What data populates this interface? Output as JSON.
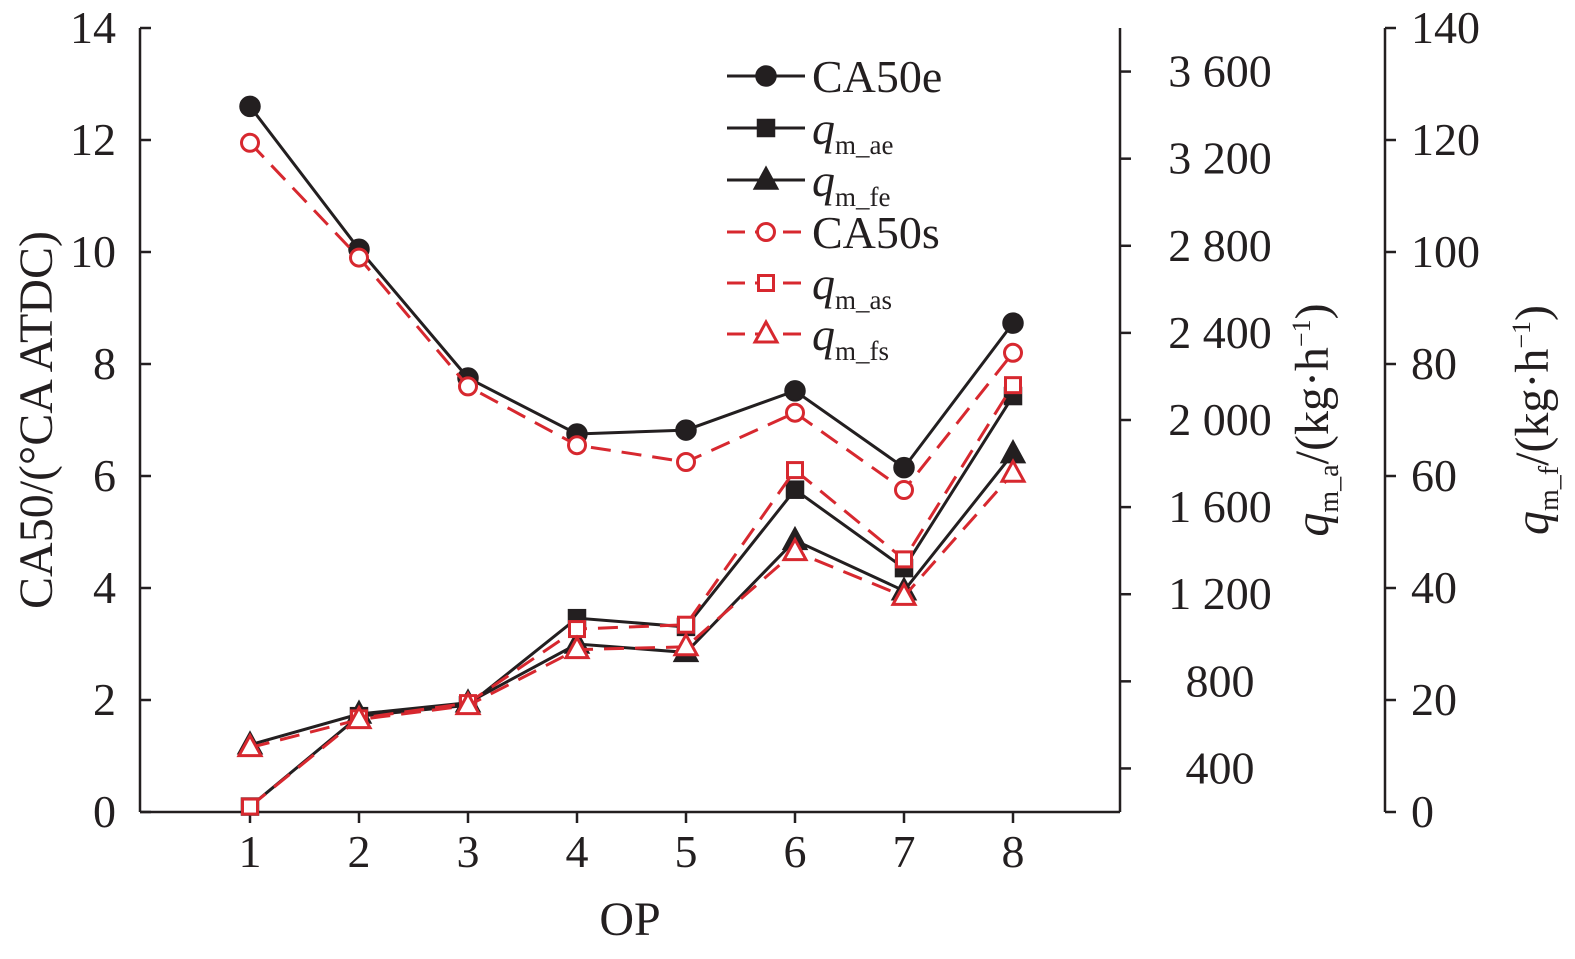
{
  "chart_data": {
    "type": "line",
    "categories": [
      "1",
      "2",
      "3",
      "4",
      "5",
      "6",
      "7",
      "8"
    ],
    "xlabel": "OP",
    "left_axis": {
      "label": "CA50/(°CA ATDC)",
      "ylim": [
        0,
        14
      ],
      "ticks": [
        "0",
        "2",
        "4",
        "6",
        "8",
        "10",
        "12",
        "14"
      ]
    },
    "right_axis_1": {
      "label_main": "q",
      "label_sub": "m_a",
      "label_units": "/(kg·h",
      "label_exp": "−1",
      "ylim": [
        200,
        3800
      ],
      "ticks": [
        "400",
        "800",
        "1 200",
        "1 600",
        "2 000",
        "2 400",
        "2 800",
        "3 200",
        "3 600"
      ]
    },
    "right_axis_2": {
      "label_main": "q",
      "label_sub": "m_f",
      "label_units": "/(kg·h",
      "label_exp": "−1",
      "ylim": [
        0,
        140
      ],
      "ticks": [
        "0",
        "20",
        "40",
        "60",
        "80",
        "100",
        "120",
        "140"
      ]
    },
    "series": [
      {
        "name": "CA50e",
        "legend_main": "CA50e",
        "legend_sub": "",
        "axis": "left",
        "color": "#231f20",
        "dash": false,
        "marker": "circle",
        "filled": true,
        "values": [
          12.6,
          10.05,
          7.75,
          6.75,
          6.82,
          7.52,
          6.15,
          8.73
        ]
      },
      {
        "name": "q_m_ae",
        "legend_main": "q",
        "legend_sub": "m_ae",
        "axis": "right_1",
        "color": "#231f20",
        "dash": false,
        "marker": "square",
        "filled": true,
        "values": [
          225,
          640,
          690,
          1090,
          1050,
          1680,
          1320,
          2110
        ]
      },
      {
        "name": "q_m_fe",
        "legend_main": "q",
        "legend_sub": "m_fe",
        "axis": "right_2",
        "color": "#231f20",
        "dash": false,
        "marker": "triangle",
        "filled": true,
        "values": [
          12,
          17.5,
          19.5,
          30,
          28.5,
          48.5,
          39.5,
          64
        ]
      },
      {
        "name": "CA50s",
        "legend_main": "CA50s",
        "legend_sub": "",
        "axis": "left",
        "color": "#d7282f",
        "dash": true,
        "marker": "circle",
        "filled": false,
        "values": [
          11.95,
          9.9,
          7.6,
          6.55,
          6.25,
          7.13,
          5.75,
          8.2
        ]
      },
      {
        "name": "q_m_as",
        "legend_main": "q",
        "legend_sub": "m_as",
        "axis": "right_1",
        "color": "#d7282f",
        "dash": true,
        "marker": "square",
        "filled": false,
        "values": [
          225,
          630,
          700,
          1040,
          1060,
          1770,
          1360,
          2160
        ]
      },
      {
        "name": "q_m_fs",
        "legend_main": "q",
        "legend_sub": "m_fs",
        "axis": "right_2",
        "color": "#d7282f",
        "dash": true,
        "marker": "triangle",
        "filled": false,
        "values": [
          11.5,
          16.5,
          19,
          29,
          29.5,
          46.5,
          38.5,
          60.5
        ]
      }
    ],
    "legend_position": "top-right (inside plot)",
    "grid": false
  }
}
